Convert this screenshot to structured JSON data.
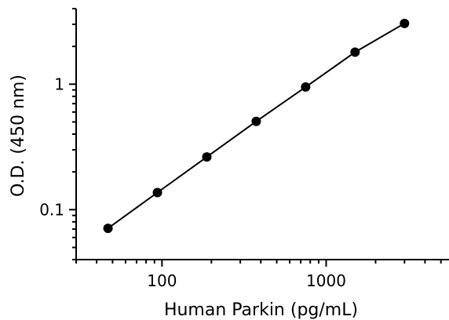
{
  "chart_data": {
    "type": "scatter",
    "title": "",
    "xlabel": "Human Parkin (pg/mL)",
    "ylabel": "O.D. (450 nm)",
    "x_scale": "log",
    "y_scale": "log",
    "xlim": [
      30,
      5600
    ],
    "ylim": [
      0.04,
      4.0
    ],
    "x_tick_labels": [
      "100",
      "1000"
    ],
    "y_tick_labels": [
      "0.1",
      "1"
    ],
    "grid": false,
    "legend": "none",
    "series": [
      {
        "x": [
          46.9,
          93.8,
          187.5,
          375,
          750,
          1500,
          3000
        ],
        "y": [
          0.071,
          0.137,
          0.263,
          0.505,
          0.95,
          1.8,
          3.05
        ],
        "marker": "circle",
        "line": "fitted",
        "color": "#000000"
      }
    ]
  }
}
